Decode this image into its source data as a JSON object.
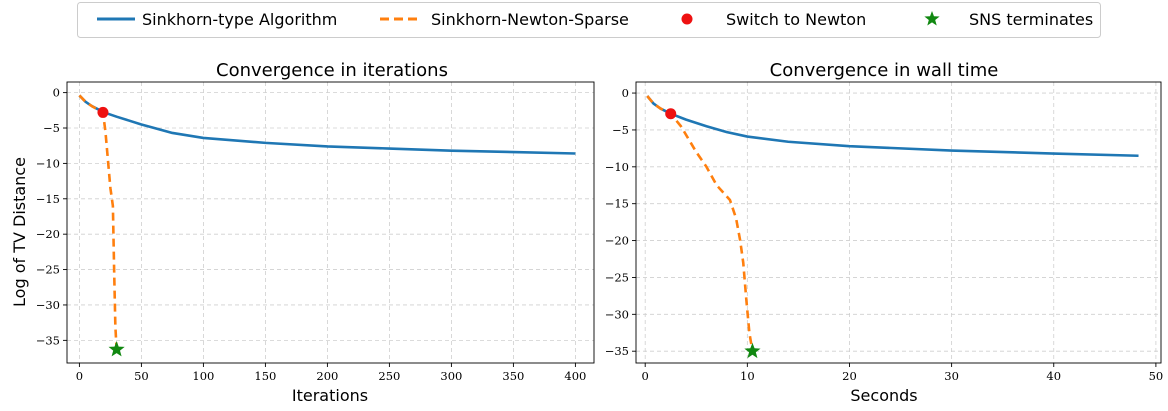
{
  "legend": {
    "entries": [
      {
        "label": "Sinkhorn-type Algorithm",
        "kind": "line",
        "color": "#1f77b4"
      },
      {
        "label": "Sinkhorn-Newton-Sparse",
        "kind": "dashed",
        "color": "#ff7f0e"
      },
      {
        "label": "Switch to Newton",
        "kind": "dot",
        "color": "#ee1111"
      },
      {
        "label": "SNS terminates",
        "kind": "star",
        "color": "#118811"
      }
    ]
  },
  "chart_data": [
    {
      "type": "line",
      "title": "Convergence in iterations",
      "xlabel": "Iterations",
      "ylabel": "Log of TV Distance",
      "xlim": [
        -10,
        415
      ],
      "ylim": [
        -38.2,
        1.5
      ],
      "xticks": [
        0,
        50,
        100,
        150,
        200,
        250,
        300,
        350,
        400
      ],
      "yticks": [
        0,
        -5,
        -10,
        -15,
        -20,
        -25,
        -30,
        -35
      ],
      "grid": true,
      "series": [
        {
          "name": "Sinkhorn-type Algorithm",
          "color": "#1f77b4",
          "dash": false,
          "x": [
            0,
            5,
            10,
            20,
            30,
            50,
            75,
            100,
            150,
            200,
            250,
            300,
            350,
            400
          ],
          "y": [
            -0.4,
            -1.3,
            -1.9,
            -2.8,
            -3.4,
            -4.5,
            -5.7,
            -6.4,
            -7.1,
            -7.6,
            -7.9,
            -8.2,
            -8.4,
            -8.6
          ]
        },
        {
          "name": "Sinkhorn-Newton-Sparse",
          "color": "#ff7f0e",
          "dash": true,
          "x": [
            0,
            5,
            10,
            15,
            19,
            21,
            23,
            25,
            27,
            28,
            29,
            30
          ],
          "y": [
            -0.4,
            -1.3,
            -1.9,
            -2.4,
            -2.8,
            -5.5,
            -9.5,
            -13.5,
            -16.0,
            -25.0,
            -33.0,
            -36.3
          ]
        }
      ],
      "markers": [
        {
          "name": "Switch to Newton",
          "shape": "dot",
          "color": "#ee1111",
          "x": 19,
          "y": -2.8
        },
        {
          "name": "SNS terminates",
          "shape": "star",
          "color": "#118811",
          "x": 30,
          "y": -36.3
        }
      ]
    },
    {
      "type": "line",
      "title": "Convergence in wall time",
      "xlabel": "Seconds",
      "ylabel": "",
      "xlim": [
        -0.9,
        50.5
      ],
      "ylim": [
        -36.6,
        1.5
      ],
      "xticks": [
        0,
        10,
        20,
        30,
        40,
        50
      ],
      "yticks": [
        0,
        -5,
        -10,
        -15,
        -20,
        -25,
        -30,
        -35
      ],
      "grid": true,
      "series": [
        {
          "name": "Sinkhorn-type Algorithm",
          "color": "#1f77b4",
          "dash": false,
          "x": [
            0.2,
            0.8,
            1.5,
            2.5,
            4,
            6,
            8,
            10,
            14,
            20,
            30,
            40,
            48.3
          ],
          "y": [
            -0.4,
            -1.4,
            -2.1,
            -2.8,
            -3.6,
            -4.5,
            -5.3,
            -5.9,
            -6.6,
            -7.2,
            -7.8,
            -8.2,
            -8.5
          ]
        },
        {
          "name": "Sinkhorn-Newton-Sparse",
          "color": "#ff7f0e",
          "dash": true,
          "x": [
            0.2,
            0.8,
            1.5,
            2.5,
            3.5,
            5,
            6,
            7,
            8.3,
            8.9,
            9.3,
            9.6,
            9.9,
            10.2,
            10.5
          ],
          "y": [
            -0.4,
            -1.4,
            -2.1,
            -2.8,
            -4.5,
            -8.0,
            -10.0,
            -12.5,
            -14.5,
            -17.0,
            -20.0,
            -23.0,
            -28.0,
            -32.5,
            -35.0
          ]
        }
      ],
      "markers": [
        {
          "name": "Switch to Newton",
          "shape": "dot",
          "color": "#ee1111",
          "x": 2.5,
          "y": -2.8
        },
        {
          "name": "SNS terminates",
          "shape": "star",
          "color": "#118811",
          "x": 10.5,
          "y": -35.0
        }
      ]
    }
  ]
}
